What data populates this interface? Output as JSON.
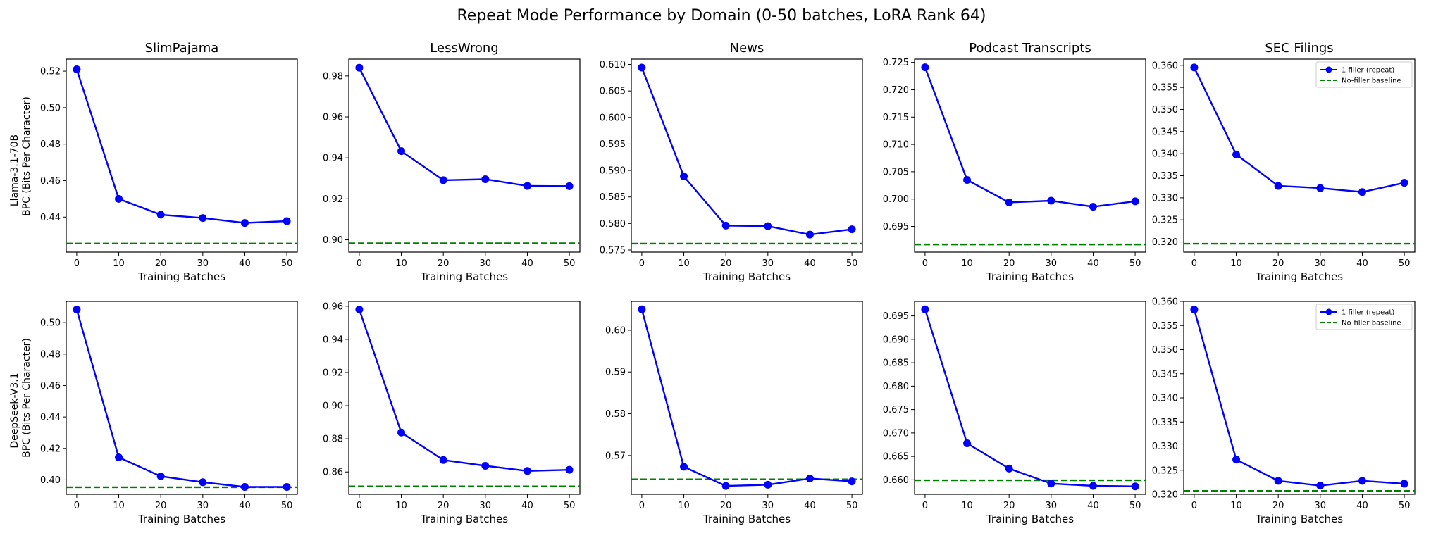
{
  "figure": {
    "title": "Repeat Mode Performance by Domain (0-50 batches, LoRA Rank 64)"
  },
  "colors": {
    "series": "#0000ff",
    "baseline": "#008000",
    "axes": "#000000"
  },
  "legend": {
    "series_label": "1 filler (repeat)",
    "baseline_label": "No-filler baseline"
  },
  "rows": [
    {
      "ylabel_model": "Llama-3.1-70B",
      "ylabel_metric": "BPC (Bits Per Character)"
    },
    {
      "ylabel_model": "DeepSeek-V3.1",
      "ylabel_metric": "BPC (Bits Per Character)"
    }
  ],
  "chart_data": [
    {
      "type": "line",
      "title": "SlimPajama",
      "xlabel": "Training Batches",
      "x": [
        0,
        10,
        20,
        30,
        40,
        50
      ],
      "xticks": [
        "0",
        "10",
        "20",
        "30",
        "40",
        "50"
      ],
      "series": [
        {
          "name": "1 filler (repeat)",
          "values": [
            0.521,
            0.45,
            0.4413,
            0.4395,
            0.4368,
            0.4378
          ]
        }
      ],
      "baseline": 0.4255,
      "ylim": [
        0.4208,
        0.5266
      ],
      "yticks": [
        "0.44",
        "0.46",
        "0.48",
        "0.50",
        "0.52"
      ],
      "ytick_values": [
        0.44,
        0.46,
        0.48,
        0.5,
        0.52
      ],
      "legend": false
    },
    {
      "type": "line",
      "title": "LessWrong",
      "xlabel": "Training Batches",
      "x": [
        0,
        10,
        20,
        30,
        40,
        50
      ],
      "xticks": [
        "0",
        "10",
        "20",
        "30",
        "40",
        "50"
      ],
      "series": [
        {
          "name": "1 filler (repeat)",
          "values": [
            0.984,
            0.9433,
            0.9291,
            0.9296,
            0.9263,
            0.9262
          ]
        }
      ],
      "baseline": 0.8983,
      "ylim": [
        0.894,
        0.9882
      ],
      "yticks": [
        "0.90",
        "0.92",
        "0.94",
        "0.96",
        "0.98"
      ],
      "ytick_values": [
        0.9,
        0.92,
        0.94,
        0.96,
        0.98
      ],
      "legend": false
    },
    {
      "type": "line",
      "title": "News",
      "xlabel": "Training Batches",
      "x": [
        0,
        10,
        20,
        30,
        40,
        50
      ],
      "xticks": [
        "0",
        "10",
        "20",
        "30",
        "40",
        "50"
      ],
      "series": [
        {
          "name": "1 filler (repeat)",
          "values": [
            0.6094,
            0.5889,
            0.5796,
            0.5795,
            0.5779,
            0.5789
          ]
        }
      ],
      "baseline": 0.5762,
      "ylim": [
        0.5746,
        0.611
      ],
      "yticks": [
        "0.575",
        "0.580",
        "0.585",
        "0.590",
        "0.595",
        "0.600",
        "0.605",
        "0.610"
      ],
      "ytick_values": [
        0.575,
        0.58,
        0.585,
        0.59,
        0.595,
        0.6,
        0.605,
        0.61
      ],
      "legend": false
    },
    {
      "type": "line",
      "title": "Podcast Transcripts",
      "xlabel": "Training Batches",
      "x": [
        0,
        10,
        20,
        30,
        40,
        50
      ],
      "xticks": [
        "0",
        "10",
        "20",
        "30",
        "40",
        "50"
      ],
      "series": [
        {
          "name": "1 filler (repeat)",
          "values": [
            0.7241,
            0.7035,
            0.6994,
            0.6997,
            0.6986,
            0.6996
          ]
        }
      ],
      "baseline": 0.6917,
      "ylim": [
        0.6903,
        0.7256
      ],
      "yticks": [
        "0.695",
        "0.700",
        "0.705",
        "0.710",
        "0.715",
        "0.720",
        "0.725"
      ],
      "ytick_values": [
        0.695,
        0.7,
        0.705,
        0.71,
        0.715,
        0.72,
        0.725
      ],
      "legend": false
    },
    {
      "type": "line",
      "title": "SEC Filings",
      "xlabel": "Training Batches",
      "x": [
        0,
        10,
        20,
        30,
        40,
        50
      ],
      "xticks": [
        "0",
        "10",
        "20",
        "30",
        "40",
        "50"
      ],
      "series": [
        {
          "name": "1 filler (repeat)",
          "values": [
            0.3595,
            0.3398,
            0.3327,
            0.3322,
            0.3313,
            0.3334
          ]
        }
      ],
      "baseline": 0.3196,
      "ylim": [
        0.3177,
        0.3614
      ],
      "yticks": [
        "0.320",
        "0.325",
        "0.330",
        "0.335",
        "0.340",
        "0.345",
        "0.350",
        "0.355",
        "0.360"
      ],
      "ytick_values": [
        0.32,
        0.325,
        0.33,
        0.335,
        0.34,
        0.345,
        0.35,
        0.355,
        0.36
      ],
      "legend": true
    },
    {
      "type": "line",
      "title": "",
      "xlabel": "Training Batches",
      "x": [
        0,
        10,
        20,
        30,
        40,
        50
      ],
      "xticks": [
        "0",
        "10",
        "20",
        "30",
        "40",
        "50"
      ],
      "series": [
        {
          "name": "1 filler (repeat)",
          "values": [
            0.5083,
            0.4143,
            0.4023,
            0.3985,
            0.3955,
            0.3955
          ]
        }
      ],
      "baseline": 0.3953,
      "ylim": [
        0.3908,
        0.5135
      ],
      "yticks": [
        "0.40",
        "0.42",
        "0.44",
        "0.46",
        "0.48",
        "0.50"
      ],
      "ytick_values": [
        0.4,
        0.42,
        0.44,
        0.46,
        0.48,
        0.5
      ],
      "legend": false
    },
    {
      "type": "line",
      "title": "",
      "xlabel": "Training Batches",
      "x": [
        0,
        10,
        20,
        30,
        40,
        50
      ],
      "xticks": [
        "0",
        "10",
        "20",
        "30",
        "40",
        "50"
      ],
      "series": [
        {
          "name": "1 filler (repeat)",
          "values": [
            0.958,
            0.8838,
            0.8672,
            0.8637,
            0.8606,
            0.8613
          ]
        }
      ],
      "baseline": 0.8513,
      "ylim": [
        0.8465,
        0.9629
      ],
      "yticks": [
        "0.86",
        "0.88",
        "0.90",
        "0.92",
        "0.94",
        "0.96"
      ],
      "ytick_values": [
        0.86,
        0.88,
        0.9,
        0.92,
        0.94,
        0.96
      ],
      "legend": false
    },
    {
      "type": "line",
      "title": "",
      "xlabel": "Training Batches",
      "x": [
        0,
        10,
        20,
        30,
        40,
        50
      ],
      "xticks": [
        "0",
        "10",
        "20",
        "30",
        "40",
        "50"
      ],
      "series": [
        {
          "name": "1 filler (repeat)",
          "values": [
            0.605,
            0.5673,
            0.5627,
            0.563,
            0.5645,
            0.5638
          ]
        }
      ],
      "baseline": 0.5643,
      "ylim": [
        0.5607,
        0.6069
      ],
      "yticks": [
        "0.57",
        "0.58",
        "0.59",
        "0.60"
      ],
      "ytick_values": [
        0.57,
        0.58,
        0.59,
        0.6
      ],
      "legend": false
    },
    {
      "type": "line",
      "title": "",
      "xlabel": "Training Batches",
      "x": [
        0,
        10,
        20,
        30,
        40,
        50
      ],
      "xticks": [
        "0",
        "10",
        "20",
        "30",
        "40",
        "50"
      ],
      "series": [
        {
          "name": "1 filler (repeat)",
          "values": [
            0.6964,
            0.6678,
            0.6624,
            0.6592,
            0.6587,
            0.6586
          ]
        }
      ],
      "baseline": 0.6599,
      "ylim": [
        0.6569,
        0.6981
      ],
      "yticks": [
        "0.660",
        "0.665",
        "0.670",
        "0.675",
        "0.680",
        "0.685",
        "0.690",
        "0.695"
      ],
      "ytick_values": [
        0.66,
        0.665,
        0.67,
        0.675,
        0.68,
        0.685,
        0.69,
        0.695
      ],
      "legend": false
    },
    {
      "type": "line",
      "title": "",
      "xlabel": "Training Batches",
      "x": [
        0,
        10,
        20,
        30,
        40,
        50
      ],
      "xticks": [
        "0",
        "10",
        "20",
        "30",
        "40",
        "50"
      ],
      "series": [
        {
          "name": "1 filler (repeat)",
          "values": [
            0.3583,
            0.3272,
            0.3228,
            0.3218,
            0.3228,
            0.3222
          ]
        }
      ],
      "baseline": 0.3207,
      "ylim": [
        0.32,
        0.36
      ],
      "yticks": [
        "0.320",
        "0.325",
        "0.330",
        "0.335",
        "0.340",
        "0.345",
        "0.350",
        "0.355",
        "0.360"
      ],
      "ytick_values": [
        0.32,
        0.325,
        0.33,
        0.335,
        0.34,
        0.345,
        0.35,
        0.355,
        0.36
      ],
      "legend": true
    }
  ]
}
